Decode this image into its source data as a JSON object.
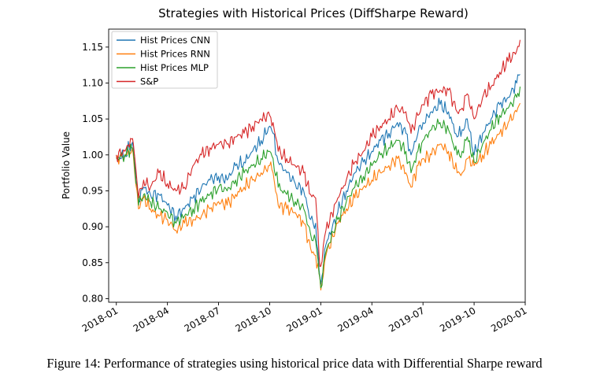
{
  "colors": {
    "cnn": "#1f77b4",
    "rnn": "#ff7f0e",
    "mlp": "#2ca02c",
    "sp": "#d62728",
    "axis": "#000000",
    "legend_border": "#cccccc"
  },
  "caption": "Figure 14: Performance of strategies using historical price data with Differential Sharpe reward",
  "chart_data": {
    "type": "line",
    "title": "Strategies with Historical Prices (DiffSharpe Reward)",
    "xlabel": "",
    "ylabel": "Portfolio Value",
    "ylim": [
      0.795,
      1.175
    ],
    "xlim": [
      -0.45,
      24.0
    ],
    "grid": false,
    "legend_position": "top-left",
    "y_ticks": [
      {
        "value": 0.8,
        "label": "0.80"
      },
      {
        "value": 0.85,
        "label": "0.85"
      },
      {
        "value": 0.9,
        "label": "0.90"
      },
      {
        "value": 0.95,
        "label": "0.95"
      },
      {
        "value": 1.0,
        "label": "1.00"
      },
      {
        "value": 1.05,
        "label": "1.05"
      },
      {
        "value": 1.1,
        "label": "1.10"
      },
      {
        "value": 1.15,
        "label": "1.15"
      }
    ],
    "x_ticks": [
      {
        "value": 0,
        "label": "2018-01"
      },
      {
        "value": 3,
        "label": "2018-04"
      },
      {
        "value": 6,
        "label": "2018-07"
      },
      {
        "value": 9,
        "label": "2018-10"
      },
      {
        "value": 12,
        "label": "2019-01"
      },
      {
        "value": 15,
        "label": "2019-04"
      },
      {
        "value": 18,
        "label": "2019-07"
      },
      {
        "value": 21,
        "label": "2019-10"
      },
      {
        "value": 24,
        "label": "2020-01"
      }
    ],
    "x": [
      0.0,
      0.5,
      0.9,
      1.0,
      1.3,
      1.6,
      2.0,
      2.5,
      3.0,
      3.5,
      4.0,
      4.5,
      5.0,
      5.5,
      6.0,
      6.5,
      7.0,
      7.5,
      8.0,
      8.5,
      9.0,
      9.2,
      9.5,
      10.0,
      10.5,
      11.0,
      11.4,
      11.7,
      11.9,
      12.0,
      12.3,
      13.0,
      13.5,
      14.0,
      14.5,
      15.0,
      15.5,
      16.0,
      16.5,
      17.0,
      17.3,
      17.7,
      18.0,
      18.5,
      19.0,
      19.5,
      20.0,
      20.3,
      20.6,
      21.0,
      21.5,
      22.0,
      22.5,
      23.0,
      23.5,
      23.7
    ],
    "series": [
      {
        "name": "Hist Prices CNN",
        "key": "cnn",
        "values": [
          0.995,
          1.0,
          1.015,
          1.008,
          0.935,
          0.955,
          0.945,
          0.945,
          0.93,
          0.915,
          0.925,
          0.94,
          0.955,
          0.965,
          0.97,
          0.965,
          0.985,
          0.99,
          1.005,
          1.02,
          1.04,
          1.03,
          0.99,
          0.975,
          0.96,
          0.95,
          0.91,
          0.905,
          0.84,
          0.82,
          0.875,
          0.92,
          0.95,
          0.975,
          0.99,
          1.005,
          1.02,
          1.03,
          1.045,
          1.03,
          1.0,
          1.03,
          1.045,
          1.06,
          1.07,
          1.06,
          1.025,
          1.035,
          1.05,
          1.0,
          1.03,
          1.05,
          1.07,
          1.08,
          1.1,
          1.112
        ]
      },
      {
        "name": "Hist Prices RNN",
        "key": "rnn",
        "values": [
          0.995,
          1.0,
          1.005,
          0.998,
          0.925,
          0.94,
          0.925,
          0.915,
          0.91,
          0.895,
          0.905,
          0.91,
          0.915,
          0.925,
          0.935,
          0.93,
          0.945,
          0.955,
          0.965,
          0.975,
          0.985,
          0.975,
          0.93,
          0.925,
          0.92,
          0.905,
          0.87,
          0.86,
          0.835,
          0.812,
          0.86,
          0.905,
          0.925,
          0.94,
          0.955,
          0.965,
          0.975,
          0.985,
          0.995,
          0.975,
          0.955,
          0.985,
          0.995,
          1.0,
          1.015,
          1.005,
          0.975,
          0.975,
          0.995,
          0.985,
          1.0,
          1.015,
          1.03,
          1.045,
          1.06,
          1.072
        ]
      },
      {
        "name": "Hist Prices MLP",
        "key": "mlp",
        "values": [
          0.995,
          1.0,
          1.01,
          1.003,
          0.93,
          0.945,
          0.935,
          0.925,
          0.92,
          0.905,
          0.915,
          0.925,
          0.935,
          0.945,
          0.955,
          0.95,
          0.965,
          0.975,
          0.985,
          0.995,
          1.005,
          0.995,
          0.955,
          0.945,
          0.935,
          0.925,
          0.89,
          0.88,
          0.835,
          0.815,
          0.865,
          0.91,
          0.935,
          0.955,
          0.97,
          0.985,
          1.0,
          1.01,
          1.02,
          1.005,
          0.975,
          1.005,
          1.02,
          1.035,
          1.045,
          1.035,
          1.0,
          1.005,
          1.025,
          0.99,
          1.015,
          1.035,
          1.055,
          1.065,
          1.08,
          1.095
        ]
      },
      {
        "name": "S&P",
        "key": "sp",
        "values": [
          1.0,
          1.005,
          1.022,
          1.015,
          0.94,
          0.965,
          0.955,
          0.975,
          0.96,
          0.95,
          0.955,
          0.985,
          1.0,
          1.01,
          1.015,
          1.015,
          1.025,
          1.03,
          1.04,
          1.05,
          1.055,
          1.045,
          1.005,
          0.995,
          0.985,
          0.975,
          0.945,
          0.94,
          0.86,
          0.845,
          0.895,
          0.94,
          0.965,
          0.99,
          1.005,
          1.025,
          1.04,
          1.05,
          1.065,
          1.06,
          1.03,
          1.055,
          1.07,
          1.085,
          1.09,
          1.09,
          1.06,
          1.065,
          1.085,
          1.05,
          1.08,
          1.095,
          1.115,
          1.13,
          1.145,
          1.16
        ]
      }
    ]
  }
}
